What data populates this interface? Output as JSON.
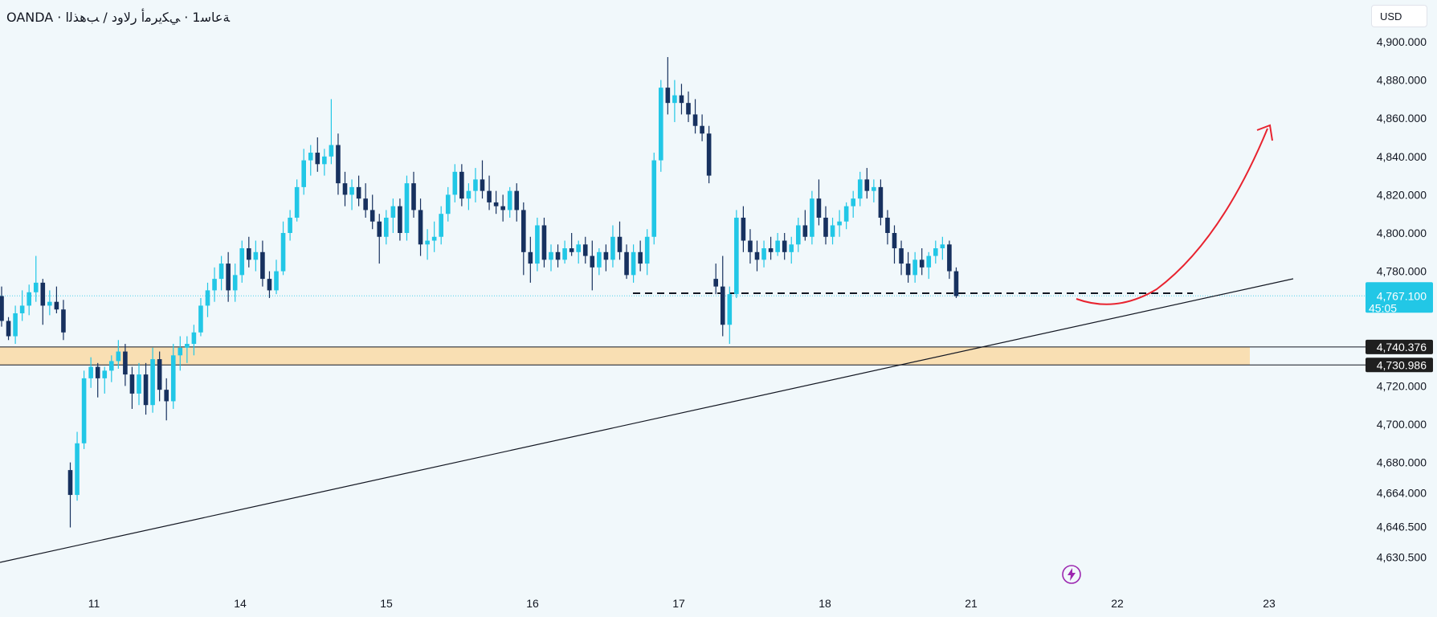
{
  "header": {
    "symbol_title": "OANDA · ﺔﻋﺎﺳ1 · ﻲﻜﻳﺮﻣﺃ ﺭﻻﻭﺩ / ﺐﻫﺬﻟﺍ",
    "currency": "USD"
  },
  "colors": {
    "background": "#f1f8fb",
    "bull_candle": "#22c7e6",
    "bear_candle": "#17315f",
    "zone_fill": "#f9dfb3",
    "arrow": "#e8232f",
    "price_label": "#22c7e6",
    "level_label": "#1f1f1f"
  },
  "chart_data": {
    "type": "candlestick",
    "symbol": "XAUUSD",
    "broker": "OANDA",
    "timeframe": "1h",
    "ylim": [
      4620,
      4910
    ],
    "y_ticks": [
      "4,900.000",
      "4,880.000",
      "4,860.000",
      "4,840.000",
      "4,820.000",
      "4,800.000",
      "4,780.000",
      "4,767.100",
      "4,740.376",
      "4,730.986",
      "4,720.000",
      "4,700.000",
      "4,680.000",
      "4,664.000",
      "4,646.500",
      "4,630.500"
    ],
    "x_ticks": [
      "11",
      "14",
      "15",
      "16",
      "17",
      "18",
      "21",
      "22",
      "23"
    ],
    "current_price": "4,767.100",
    "countdown": "45:05",
    "support_zone": {
      "top": "4,740.376",
      "bottom": "4,730.986"
    },
    "dashed_level": 4768.5,
    "trendline": {
      "from": "near 11, ~4643",
      "to": "beyond 22, ~4778"
    },
    "projection": "curved red arrow rising from ~4767 toward ~4856",
    "grid": false,
    "candles": [
      [
        4767,
        4772,
        4751,
        4754
      ],
      [
        4754,
        4756,
        4744,
        4746
      ],
      [
        4746,
        4762,
        4742,
        4758
      ],
      [
        4758,
        4770,
        4754,
        4762
      ],
      [
        4762,
        4773,
        4757,
        4769
      ],
      [
        4769,
        4788,
        4764,
        4774
      ],
      [
        4774,
        4776,
        4752,
        4762
      ],
      [
        4762,
        4770,
        4757,
        4764
      ],
      [
        4764,
        4772,
        4758,
        4760
      ],
      [
        4760,
        4765,
        4744,
        4748
      ],
      [
        4676,
        4680,
        4646,
        4663
      ],
      [
        4663,
        4696,
        4660,
        4690
      ],
      [
        4690,
        4728,
        4687,
        4724
      ],
      [
        4724,
        4735,
        4719,
        4730
      ],
      [
        4730,
        4732,
        4714,
        4724
      ],
      [
        4724,
        4730,
        4716,
        4728
      ],
      [
        4728,
        4736,
        4722,
        4733
      ],
      [
        4733,
        4744,
        4729,
        4738
      ],
      [
        4738,
        4742,
        4720,
        4726
      ],
      [
        4726,
        4730,
        4708,
        4716
      ],
      [
        4716,
        4732,
        4710,
        4726
      ],
      [
        4726,
        4732,
        4705,
        4710
      ],
      [
        4710,
        4740,
        4706,
        4734
      ],
      [
        4734,
        4738,
        4712,
        4718
      ],
      [
        4718,
        4724,
        4702,
        4712
      ],
      [
        4712,
        4742,
        4708,
        4736
      ],
      [
        4736,
        4746,
        4728,
        4740
      ],
      [
        4740,
        4746,
        4732,
        4742
      ],
      [
        4742,
        4752,
        4736,
        4748
      ],
      [
        4748,
        4766,
        4746,
        4762
      ],
      [
        4762,
        4774,
        4756,
        4770
      ],
      [
        4770,
        4782,
        4764,
        4776
      ],
      [
        4776,
        4788,
        4770,
        4784
      ],
      [
        4784,
        4790,
        4764,
        4770
      ],
      [
        4770,
        4784,
        4764,
        4778
      ],
      [
        4778,
        4796,
        4774,
        4792
      ],
      [
        4792,
        4798,
        4782,
        4786
      ],
      [
        4786,
        4796,
        4780,
        4790
      ],
      [
        4790,
        4796,
        4772,
        4776
      ],
      [
        4776,
        4780,
        4766,
        4770
      ],
      [
        4770,
        4786,
        4768,
        4780
      ],
      [
        4780,
        4806,
        4778,
        4800
      ],
      [
        4800,
        4812,
        4796,
        4808
      ],
      [
        4808,
        4828,
        4806,
        4824
      ],
      [
        4824,
        4844,
        4820,
        4838
      ],
      [
        4838,
        4846,
        4830,
        4842
      ],
      [
        4842,
        4850,
        4832,
        4836
      ],
      [
        4836,
        4844,
        4830,
        4840
      ],
      [
        4840,
        4870,
        4836,
        4846
      ],
      [
        4846,
        4852,
        4820,
        4826
      ],
      [
        4826,
        4832,
        4814,
        4820
      ],
      [
        4820,
        4828,
        4812,
        4824
      ],
      [
        4824,
        4830,
        4814,
        4818
      ],
      [
        4818,
        4826,
        4808,
        4812
      ],
      [
        4812,
        4820,
        4802,
        4806
      ],
      [
        4806,
        4810,
        4784,
        4798
      ],
      [
        4798,
        4812,
        4794,
        4808
      ],
      [
        4808,
        4818,
        4800,
        4814
      ],
      [
        4814,
        4818,
        4796,
        4800
      ],
      [
        4800,
        4830,
        4796,
        4826
      ],
      [
        4826,
        4832,
        4808,
        4812
      ],
      [
        4812,
        4818,
        4788,
        4794
      ],
      [
        4794,
        4802,
        4786,
        4796
      ],
      [
        4796,
        4806,
        4790,
        4798
      ],
      [
        4798,
        4814,
        4794,
        4810
      ],
      [
        4810,
        4824,
        4806,
        4820
      ],
      [
        4820,
        4836,
        4816,
        4832
      ],
      [
        4832,
        4836,
        4814,
        4818
      ],
      [
        4818,
        4826,
        4812,
        4822
      ],
      [
        4822,
        4834,
        4816,
        4828
      ],
      [
        4828,
        4838,
        4818,
        4822
      ],
      [
        4822,
        4830,
        4812,
        4816
      ],
      [
        4816,
        4822,
        4810,
        4814
      ],
      [
        4814,
        4820,
        4806,
        4812
      ],
      [
        4812,
        4824,
        4808,
        4822
      ],
      [
        4822,
        4826,
        4806,
        4812
      ],
      [
        4812,
        4816,
        4778,
        4790
      ],
      [
        4790,
        4798,
        4774,
        4784
      ],
      [
        4784,
        4808,
        4780,
        4804
      ],
      [
        4804,
        4808,
        4782,
        4786
      ],
      [
        4786,
        4794,
        4780,
        4790
      ],
      [
        4790,
        4794,
        4782,
        4786
      ],
      [
        4786,
        4796,
        4784,
        4792
      ],
      [
        4792,
        4800,
        4788,
        4790
      ],
      [
        4790,
        4796,
        4784,
        4794
      ],
      [
        4794,
        4798,
        4784,
        4788
      ],
      [
        4788,
        4796,
        4770,
        4782
      ],
      [
        4782,
        4792,
        4778,
        4790
      ],
      [
        4790,
        4794,
        4780,
        4786
      ],
      [
        4786,
        4804,
        4782,
        4798
      ],
      [
        4798,
        4806,
        4786,
        4790
      ],
      [
        4790,
        4794,
        4776,
        4778
      ],
      [
        4778,
        4794,
        4774,
        4790
      ],
      [
        4790,
        4796,
        4780,
        4784
      ],
      [
        4784,
        4802,
        4778,
        4798
      ],
      [
        4798,
        4842,
        4794,
        4838
      ],
      [
        4838,
        4880,
        4832,
        4876
      ],
      [
        4876,
        4892,
        4862,
        4868
      ],
      [
        4868,
        4880,
        4858,
        4872
      ],
      [
        4872,
        4878,
        4862,
        4868
      ],
      [
        4868,
        4874,
        4858,
        4862
      ],
      [
        4862,
        4870,
        4852,
        4856
      ],
      [
        4856,
        4862,
        4848,
        4852
      ],
      [
        4852,
        4856,
        4826,
        4830
      ],
      [
        4776,
        4784,
        4768,
        4772
      ],
      [
        4772,
        4788,
        4746,
        4752
      ],
      [
        4752,
        4772,
        4742,
        4768
      ],
      [
        4768,
        4812,
        4766,
        4808
      ],
      [
        4808,
        4814,
        4790,
        4796
      ],
      [
        4796,
        4802,
        4784,
        4790
      ],
      [
        4790,
        4796,
        4780,
        4786
      ],
      [
        4786,
        4796,
        4782,
        4792
      ],
      [
        4792,
        4798,
        4786,
        4790
      ],
      [
        4790,
        4800,
        4788,
        4796
      ],
      [
        4796,
        4800,
        4786,
        4790
      ],
      [
        4790,
        4798,
        4784,
        4794
      ],
      [
        4794,
        4808,
        4790,
        4804
      ],
      [
        4804,
        4812,
        4796,
        4798
      ],
      [
        4798,
        4822,
        4794,
        4818
      ],
      [
        4818,
        4828,
        4804,
        4808
      ],
      [
        4808,
        4814,
        4794,
        4798
      ],
      [
        4798,
        4808,
        4794,
        4804
      ],
      [
        4804,
        4812,
        4798,
        4806
      ],
      [
        4806,
        4816,
        4802,
        4814
      ],
      [
        4814,
        4822,
        4808,
        4818
      ],
      [
        4818,
        4832,
        4814,
        4828
      ],
      [
        4828,
        4834,
        4818,
        4822
      ],
      [
        4822,
        4828,
        4816,
        4824
      ],
      [
        4824,
        4828,
        4804,
        4808
      ],
      [
        4808,
        4812,
        4794,
        4800
      ],
      [
        4800,
        4804,
        4784,
        4792
      ],
      [
        4792,
        4796,
        4778,
        4784
      ],
      [
        4784,
        4790,
        4774,
        4778
      ],
      [
        4778,
        4790,
        4774,
        4786
      ],
      [
        4786,
        4792,
        4778,
        4782
      ],
      [
        4782,
        4790,
        4776,
        4788
      ],
      [
        4788,
        4796,
        4784,
        4792
      ],
      [
        4792,
        4798,
        4786,
        4794
      ],
      [
        4794,
        4796,
        4776,
        4780
      ],
      [
        4780,
        4782,
        4766,
        4767
      ]
    ]
  }
}
